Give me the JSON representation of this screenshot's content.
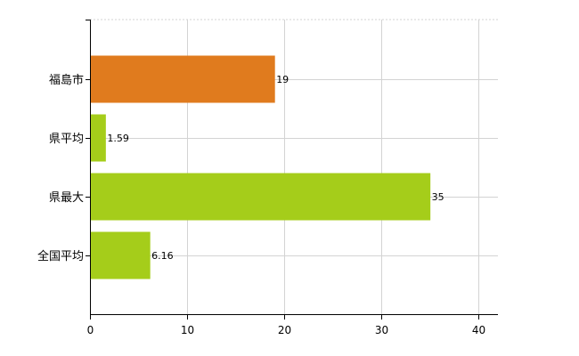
{
  "chart_data": {
    "type": "bar",
    "orientation": "horizontal",
    "categories": [
      "福島市",
      "県平均",
      "県最大",
      "全国平均"
    ],
    "values": [
      19,
      1.59,
      35,
      6.16
    ],
    "data_labels": [
      "19",
      "1.59",
      "35",
      "6.16"
    ],
    "bar_colors": [
      "#e07b1e",
      "#a5cd1a",
      "#a5cd1a",
      "#a5cd1a"
    ],
    "xlim": [
      0,
      42
    ],
    "x_ticks": [
      0,
      10,
      20,
      30,
      40
    ],
    "x_tick_labels": [
      "0",
      "10",
      "20",
      "30",
      "40"
    ],
    "grid": true,
    "title": "",
    "xlabel": "",
    "ylabel": ""
  }
}
